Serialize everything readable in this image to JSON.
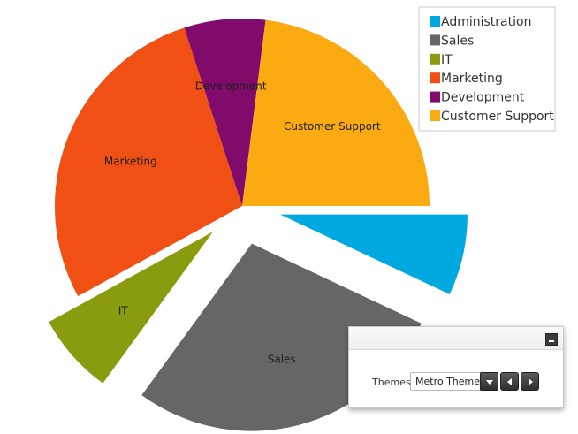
{
  "chart_data": {
    "type": "pie",
    "title": "",
    "slices": [
      {
        "name": "Administration",
        "value": 7,
        "color": "#00a8e0",
        "exploded": true,
        "show_label": false
      },
      {
        "name": "Sales",
        "value": 28,
        "color": "#666666",
        "exploded": true,
        "show_label": true
      },
      {
        "name": "IT",
        "value": 7,
        "color": "#8a9b0f",
        "exploded": true,
        "show_label": true
      },
      {
        "name": "Marketing",
        "value": 28,
        "color": "#f05014",
        "exploded": false,
        "show_label": true
      },
      {
        "name": "Development",
        "value": 7,
        "color": "#800b6b",
        "exploded": false,
        "show_label": true
      },
      {
        "name": "Customer Support",
        "value": 23,
        "color": "#fbaa12",
        "exploded": false,
        "show_label": true
      }
    ],
    "legend": {
      "position": "top-right",
      "entries": [
        "Administration",
        "Sales",
        "IT",
        "Marketing",
        "Development",
        "Customer Support"
      ]
    }
  },
  "theme_panel": {
    "label": "Themes",
    "selected_theme": "Metro Theme"
  }
}
